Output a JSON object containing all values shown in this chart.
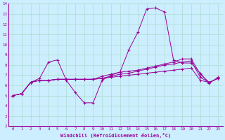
{
  "xlabel": "Windchill (Refroidissement éolien,°C)",
  "bg_color": "#cceeff",
  "line_color": "#990099",
  "grid_color": "#aaddcc",
  "xlim": [
    -0.5,
    23.5
  ],
  "ylim": [
    2,
    14
  ],
  "xticks": [
    0,
    1,
    2,
    3,
    4,
    5,
    6,
    7,
    8,
    9,
    10,
    11,
    12,
    13,
    14,
    15,
    16,
    17,
    18,
    19,
    20,
    21,
    22,
    23
  ],
  "yticks": [
    2,
    3,
    4,
    5,
    6,
    7,
    8,
    9,
    10,
    11,
    12,
    13,
    14
  ],
  "series": [
    [
      5.0,
      5.2,
      6.3,
      6.7,
      8.3,
      8.5,
      6.5,
      5.3,
      4.3,
      4.3,
      6.5,
      7.0,
      7.3,
      9.5,
      11.2,
      13.5,
      13.6,
      13.2,
      8.5,
      8.2,
      8.2,
      7.2,
      6.2,
      6.8
    ],
    [
      5.0,
      5.2,
      6.3,
      6.5,
      6.5,
      6.6,
      6.6,
      6.6,
      6.6,
      6.6,
      6.7,
      6.8,
      6.9,
      7.0,
      7.1,
      7.2,
      7.3,
      7.4,
      7.5,
      7.6,
      7.7,
      6.5,
      6.3,
      6.7
    ],
    [
      5.0,
      5.2,
      6.3,
      6.5,
      6.5,
      6.6,
      6.6,
      6.6,
      6.6,
      6.6,
      6.7,
      6.9,
      7.1,
      7.2,
      7.4,
      7.6,
      7.8,
      8.0,
      8.1,
      8.3,
      8.4,
      6.8,
      6.3,
      6.7
    ],
    [
      5.0,
      5.2,
      6.3,
      6.5,
      6.5,
      6.6,
      6.6,
      6.6,
      6.6,
      6.6,
      6.9,
      7.1,
      7.3,
      7.4,
      7.5,
      7.7,
      7.9,
      8.1,
      8.3,
      8.6,
      8.6,
      7.1,
      6.3,
      6.7
    ]
  ]
}
